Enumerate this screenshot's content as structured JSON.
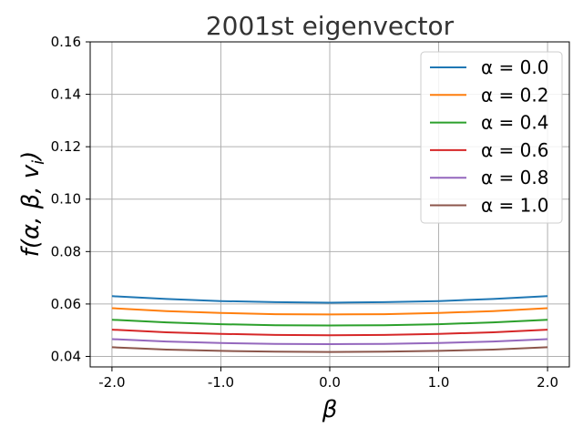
{
  "chart_data": {
    "type": "line",
    "title": "2001st eigenvector",
    "xlabel": "β",
    "ylabel": "f(α, β, v",
    "ylabel_sub": "i",
    "ylabel_close": ")",
    "xlim": [
      -2.2,
      2.2
    ],
    "ylim": [
      0.036,
      0.16
    ],
    "x_ticks": [
      -2.0,
      -1.0,
      0.0,
      1.0,
      2.0
    ],
    "x_tick_labels": [
      "-2.0",
      "-1.0",
      "0.0",
      "1.0",
      "2.0"
    ],
    "y_ticks": [
      0.04,
      0.06,
      0.08,
      0.1,
      0.12,
      0.14,
      0.16
    ],
    "y_tick_labels": [
      "0.04",
      "0.06",
      "0.08",
      "0.10",
      "0.12",
      "0.14",
      "0.16"
    ],
    "grid": true,
    "legend_position": "top-right",
    "x": [
      -2.0,
      -1.5,
      -1.0,
      -0.5,
      0.0,
      0.5,
      1.0,
      1.5,
      2.0
    ],
    "series": [
      {
        "name": "α = 0.0",
        "color": "#1f77b4",
        "values": [
          0.063,
          0.0619,
          0.0611,
          0.0607,
          0.0605,
          0.0607,
          0.0611,
          0.0619,
          0.063
        ]
      },
      {
        "name": "α = 0.2",
        "color": "#ff7f0e",
        "values": [
          0.0584,
          0.0573,
          0.0566,
          0.0561,
          0.056,
          0.0561,
          0.0566,
          0.0573,
          0.0584
        ]
      },
      {
        "name": "α = 0.4",
        "color": "#2ca02c",
        "values": [
          0.054,
          0.053,
          0.0523,
          0.0519,
          0.0518,
          0.0519,
          0.0523,
          0.053,
          0.054
        ]
      },
      {
        "name": "α = 0.6",
        "color": "#d62728",
        "values": [
          0.0502,
          0.0492,
          0.0486,
          0.0482,
          0.0481,
          0.0482,
          0.0486,
          0.0492,
          0.0502
        ]
      },
      {
        "name": "α = 0.8",
        "color": "#9467bd",
        "values": [
          0.0466,
          0.0457,
          0.0451,
          0.0448,
          0.0447,
          0.0448,
          0.0451,
          0.0457,
          0.0466
        ]
      },
      {
        "name": "α = 1.0",
        "color": "#8c564b",
        "values": [
          0.0435,
          0.0426,
          0.0421,
          0.0418,
          0.0417,
          0.0418,
          0.0421,
          0.0426,
          0.0435
        ]
      }
    ]
  }
}
